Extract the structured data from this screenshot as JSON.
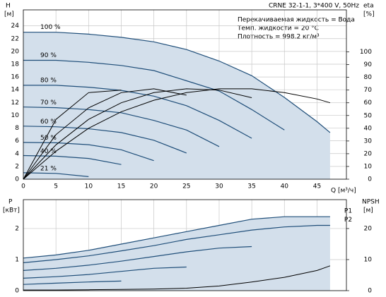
{
  "chart_data": [
    {
      "type": "line",
      "title": "CRNE 32-1-1, 3*400 V, 50Hz",
      "annotations": [
        "Перекачиваемая жидкость = Вода",
        "Темп. жидкости = 20 °C",
        "Плотность = 998.2 кг/м³"
      ],
      "y_label": [
        "H",
        "[м]"
      ],
      "y2_label": [
        "eta",
        "[%]"
      ],
      "x_label": "Q [м³/ч]",
      "x": [
        0,
        5,
        10,
        15,
        20,
        25,
        30,
        35,
        40,
        45,
        47
      ],
      "xlim": [
        0,
        49.5
      ],
      "xticks": [
        0,
        5,
        10,
        15,
        20,
        25,
        30,
        35,
        40,
        45
      ],
      "ylim": [
        0,
        26.5
      ],
      "yticks": [
        0,
        2,
        4,
        6,
        8,
        10,
        12,
        14,
        16,
        18,
        20,
        22,
        24
      ],
      "y2lim": [
        0,
        133
      ],
      "y2ticks": [
        0,
        10,
        20,
        30,
        40,
        50,
        60,
        70,
        80,
        90,
        100
      ],
      "grid": true,
      "series": [
        {
          "name": "100 %",
          "color": "#1f4e79",
          "fill": "#d3dfeb",
          "values": [
            23,
            23.0,
            22.7,
            22.2,
            21.5,
            20.3,
            18.5,
            16.2,
            12.8,
            9.0,
            7.3
          ]
        },
        {
          "name": "90 %",
          "color": "#1f4e79",
          "values": [
            18.6,
            18.6,
            18.3,
            17.8,
            17.0,
            15.4,
            13.8,
            10.9,
            7.7,
            null,
            null
          ]
        },
        {
          "name": "80 %",
          "color": "#1f4e79",
          "values": [
            14.7,
            14.7,
            14.4,
            13.9,
            13.0,
            11.5,
            9.2,
            6.4,
            null,
            null,
            null
          ]
        },
        {
          "name": "70 %",
          "color": "#1f4e79",
          "values": [
            11.3,
            11.2,
            10.9,
            10.4,
            9.2,
            7.7,
            5.1,
            null,
            null,
            null,
            null
          ]
        },
        {
          "name": "60 %",
          "color": "#1f4e79",
          "values": [
            8.3,
            8.2,
            7.9,
            7.3,
            6.1,
            4.1,
            null,
            null,
            null,
            null,
            null
          ]
        },
        {
          "name": "50 %",
          "color": "#1f4e79",
          "values": [
            5.75,
            5.7,
            5.4,
            4.6,
            2.9,
            null,
            null,
            null,
            null,
            null,
            null
          ]
        },
        {
          "name": "40 %",
          "color": "#1f4e79",
          "values": [
            3.7,
            3.6,
            3.25,
            2.3,
            null,
            null,
            null,
            null,
            null,
            null,
            null
          ]
        },
        {
          "name": "21 %",
          "color": "#1f4e79",
          "values": [
            1.0,
            0.9,
            0.4,
            null,
            null,
            null,
            null,
            null,
            null,
            null,
            null
          ]
        },
        {
          "color": "#000000",
          "axis": "y2",
          "values": [
            0,
            22,
            40,
            53,
            62,
            68,
            71,
            71,
            68,
            63,
            60
          ]
        },
        {
          "color": "#000000",
          "axis": "y2",
          "values": [
            0,
            27,
            47,
            60,
            68,
            71,
            70,
            64,
            null,
            null,
            null
          ]
        },
        {
          "color": "#000000",
          "axis": "y2",
          "values": [
            0,
            35,
            56,
            68,
            71,
            66,
            null,
            null,
            null,
            null,
            null
          ]
        },
        {
          "color": "#000000",
          "axis": "y2",
          "values": [
            0,
            47,
            68,
            70,
            null,
            null,
            null,
            null,
            null,
            null,
            null
          ]
        }
      ]
    },
    {
      "type": "line",
      "y_label": [
        "P",
        "[кВт]"
      ],
      "y2_label": [
        "NPSH",
        "[м]"
      ],
      "x": [
        0,
        5,
        10,
        15,
        20,
        25,
        30,
        35,
        40,
        45,
        47
      ],
      "xlim": [
        0,
        49.5
      ],
      "ylim": [
        0,
        2.93
      ],
      "yticks": [
        0,
        1,
        2
      ],
      "y2lim": [
        0,
        29.3
      ],
      "y2ticks": [
        0,
        10,
        20
      ],
      "grid": true,
      "series": [
        {
          "name": "P1",
          "color": "#1f4e79",
          "fill": "#d3dfeb",
          "values": [
            1.05,
            1.15,
            1.3,
            1.5,
            1.7,
            1.9,
            2.1,
            2.3,
            2.38,
            2.38,
            2.38
          ]
        },
        {
          "name": "P2",
          "color": "#1f4e79",
          "values": [
            0.9,
            1.0,
            1.12,
            1.28,
            1.45,
            1.65,
            1.8,
            1.95,
            2.05,
            2.1,
            2.1
          ]
        },
        {
          "color": "#1f4e79",
          "values": [
            0.65,
            0.72,
            0.82,
            0.95,
            1.1,
            1.25,
            1.37,
            1.42,
            null,
            null,
            null
          ]
        },
        {
          "color": "#1f4e79",
          "values": [
            0.4,
            0.45,
            0.52,
            0.62,
            0.72,
            0.76,
            null,
            null,
            null,
            null,
            null
          ]
        },
        {
          "color": "#1f4e79",
          "values": [
            0.2,
            0.24,
            0.28,
            0.31,
            null,
            null,
            null,
            null,
            null,
            null,
            null
          ]
        },
        {
          "color": "#000000",
          "axis": "y2",
          "values": [
            0.2,
            0.2,
            0.3,
            0.4,
            0.5,
            0.8,
            1.5,
            2.8,
            4.3,
            6.5,
            8
          ]
        }
      ]
    }
  ]
}
